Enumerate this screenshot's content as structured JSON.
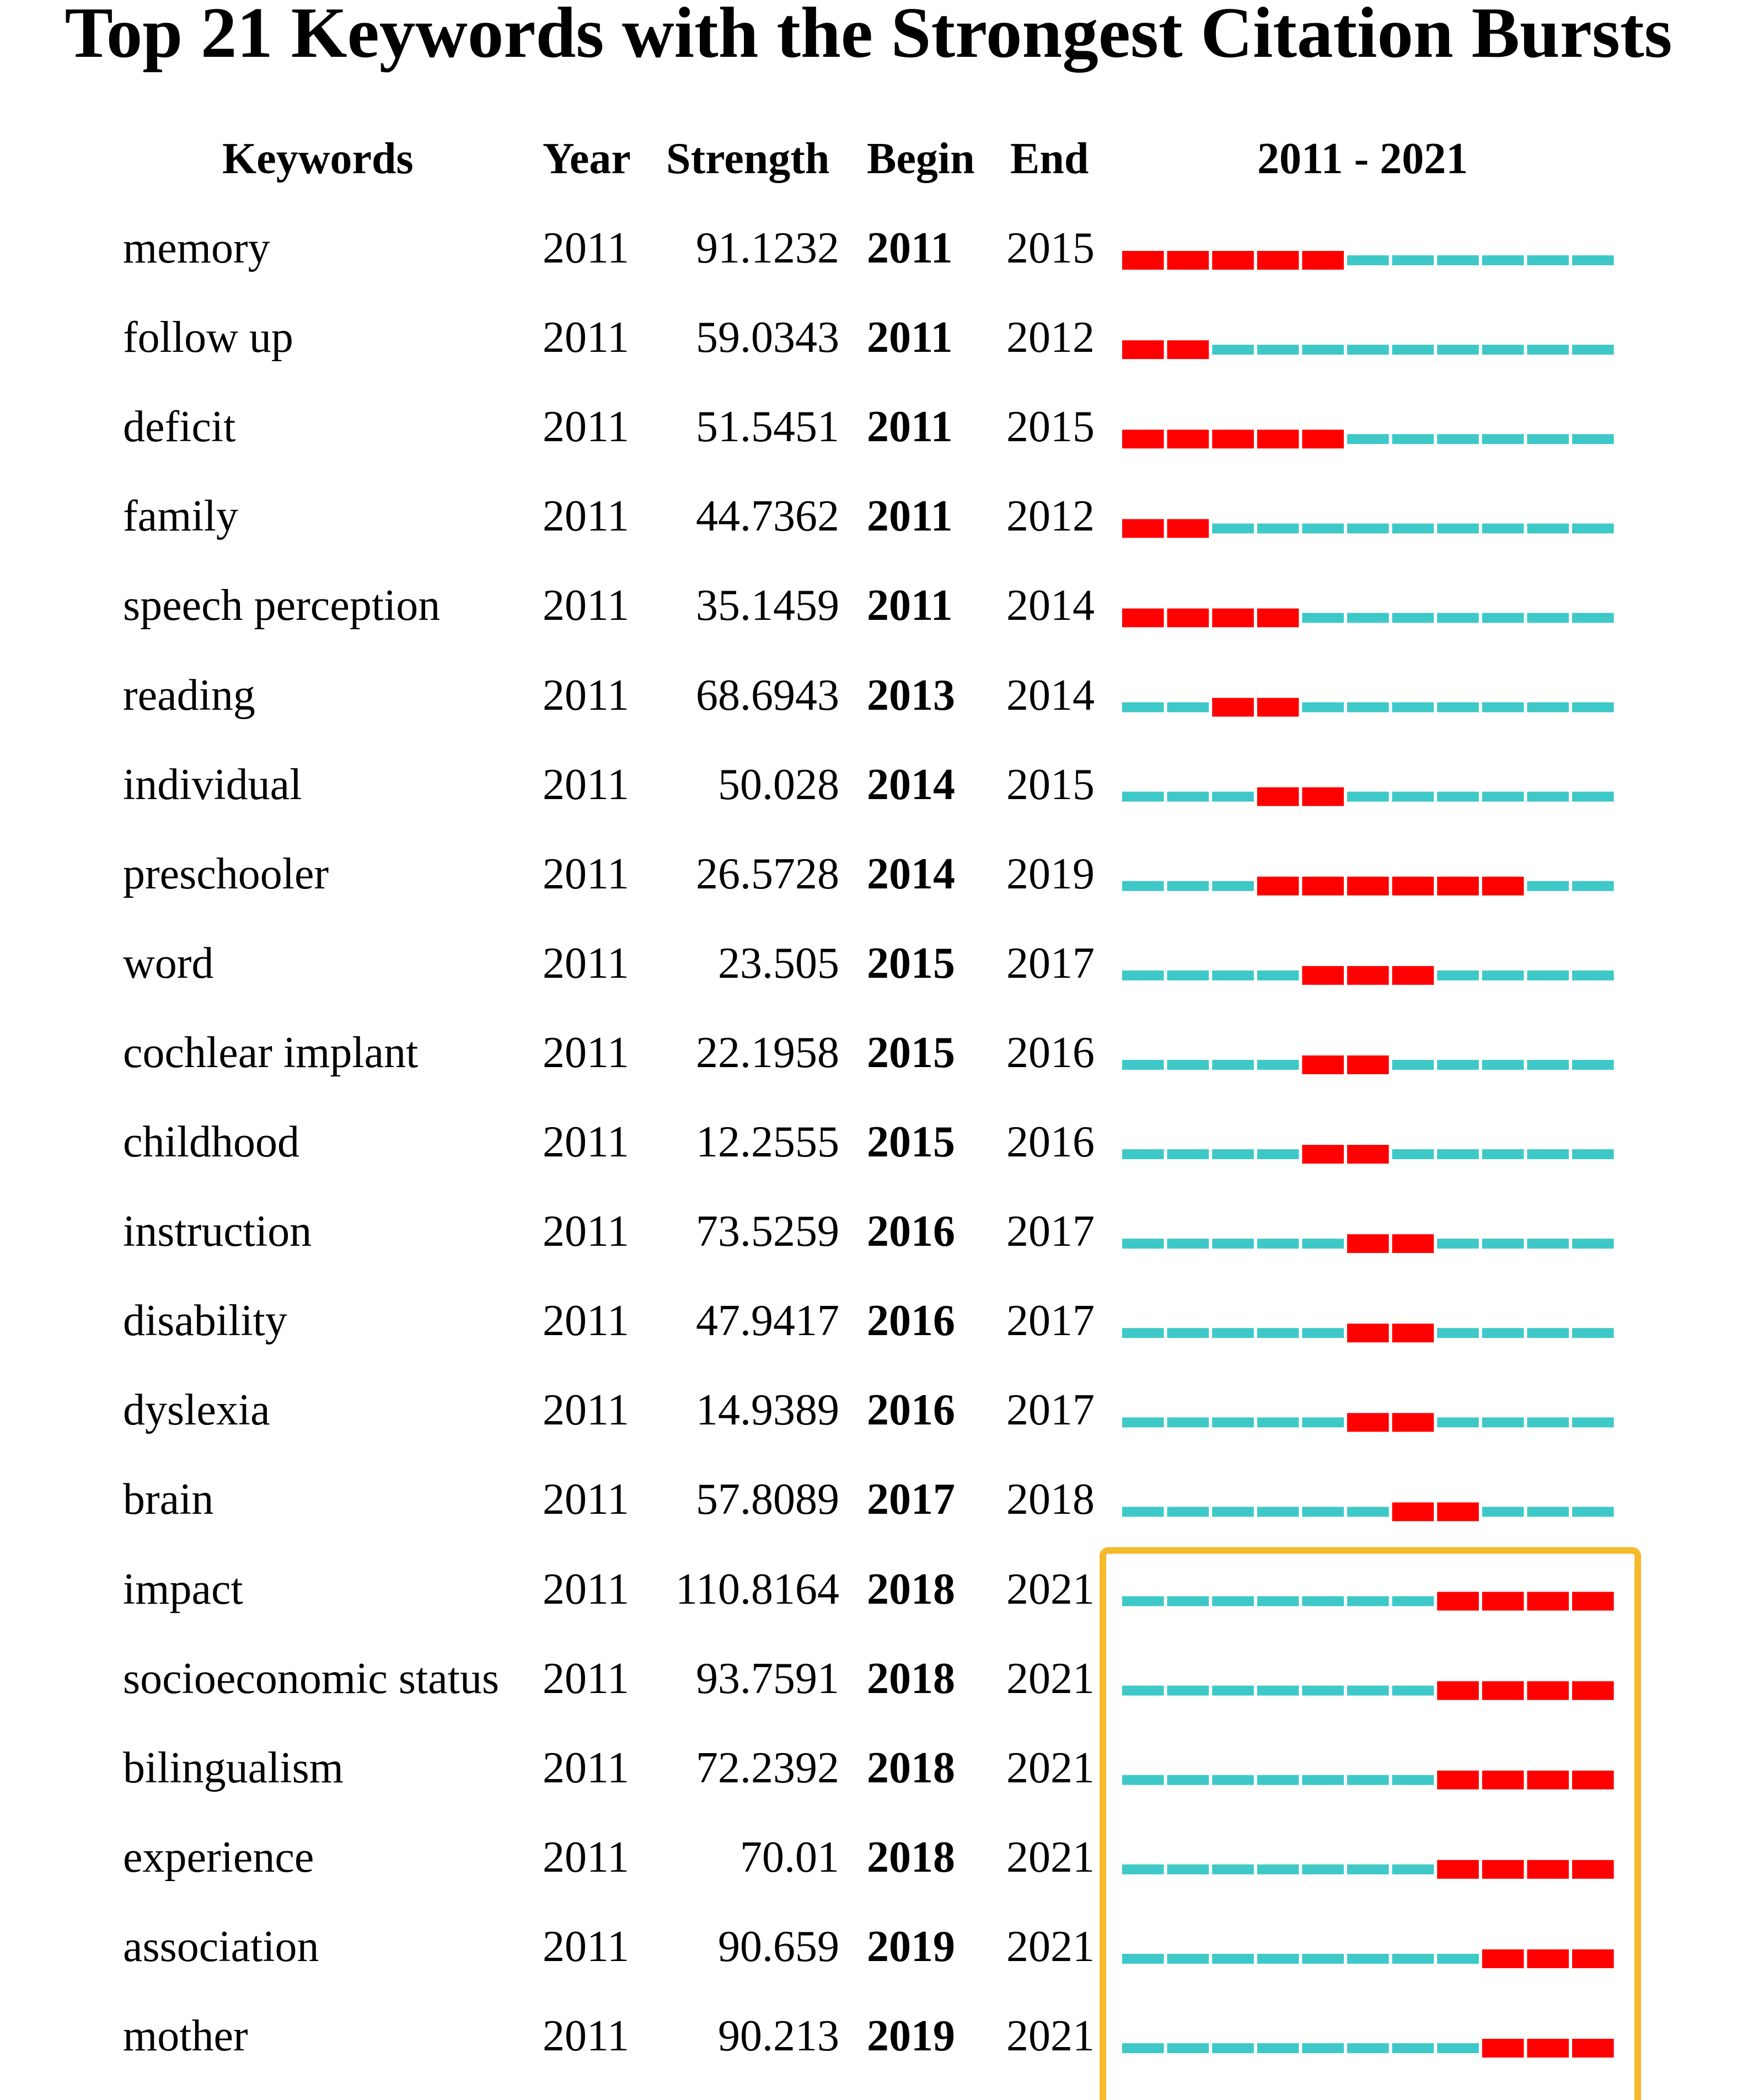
{
  "title": "Top 21 Keywords with the Strongest Citation Bursts",
  "headers": {
    "keywords": "Keywords",
    "year": "Year",
    "strength": "Strength",
    "begin": "Begin",
    "end": "End",
    "range": "2011 - 2021"
  },
  "colors": {
    "burst": "#ff0000",
    "baseline": "#3ec8c8",
    "highlight_box": "#f5b92c"
  },
  "chart_data": {
    "type": "table",
    "timeline": {
      "start": 2011,
      "end": 2021
    },
    "highlight_rows": [
      15,
      20
    ],
    "rows": [
      {
        "keyword": "memory",
        "year": "2011",
        "strength": "91.1232",
        "begin": "2011",
        "end": "2015"
      },
      {
        "keyword": "follow up",
        "year": "2011",
        "strength": "59.0343",
        "begin": "2011",
        "end": "2012"
      },
      {
        "keyword": "deficit",
        "year": "2011",
        "strength": "51.5451",
        "begin": "2011",
        "end": "2015"
      },
      {
        "keyword": "family",
        "year": "2011",
        "strength": "44.7362",
        "begin": "2011",
        "end": "2012"
      },
      {
        "keyword": "speech perception",
        "year": "2011",
        "strength": "35.1459",
        "begin": "2011",
        "end": "2014"
      },
      {
        "keyword": "reading",
        "year": "2011",
        "strength": "68.6943",
        "begin": "2013",
        "end": "2014"
      },
      {
        "keyword": "individual",
        "year": "2011",
        "strength": "50.028",
        "begin": "2014",
        "end": "2015"
      },
      {
        "keyword": "preschooler",
        "year": "2011",
        "strength": "26.5728",
        "begin": "2014",
        "end": "2019"
      },
      {
        "keyword": "word",
        "year": "2011",
        "strength": "23.505",
        "begin": "2015",
        "end": "2017"
      },
      {
        "keyword": "cochlear implant",
        "year": "2011",
        "strength": "22.1958",
        "begin": "2015",
        "end": "2016"
      },
      {
        "keyword": "childhood",
        "year": "2011",
        "strength": "12.2555",
        "begin": "2015",
        "end": "2016"
      },
      {
        "keyword": "instruction",
        "year": "2011",
        "strength": "73.5259",
        "begin": "2016",
        "end": "2017"
      },
      {
        "keyword": "disability",
        "year": "2011",
        "strength": "47.9417",
        "begin": "2016",
        "end": "2017"
      },
      {
        "keyword": "dyslexia",
        "year": "2011",
        "strength": "14.9389",
        "begin": "2016",
        "end": "2017"
      },
      {
        "keyword": "brain",
        "year": "2011",
        "strength": "57.8089",
        "begin": "2017",
        "end": "2018"
      },
      {
        "keyword": "impact",
        "year": "2011",
        "strength": "110.8164",
        "begin": "2018",
        "end": "2021"
      },
      {
        "keyword": "socioeconomic status",
        "year": "2011",
        "strength": "93.7591",
        "begin": "2018",
        "end": "2021"
      },
      {
        "keyword": "bilingualism",
        "year": "2011",
        "strength": "72.2392",
        "begin": "2018",
        "end": "2021"
      },
      {
        "keyword": "experience",
        "year": "2011",
        "strength": "70.01",
        "begin": "2018",
        "end": "2021"
      },
      {
        "keyword": "association",
        "year": "2011",
        "strength": "90.659",
        "begin": "2019",
        "end": "2021"
      },
      {
        "keyword": "mother",
        "year": "2011",
        "strength": "90.213",
        "begin": "2019",
        "end": "2021"
      }
    ]
  }
}
